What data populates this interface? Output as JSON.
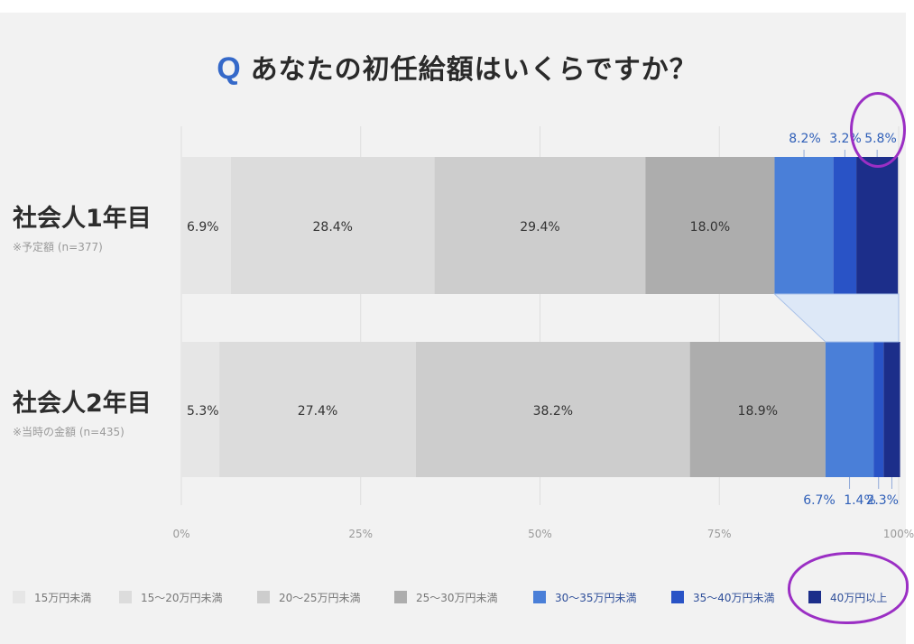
{
  "title": {
    "q": "Q",
    "text": "あなたの初任給額はいくらですか？"
  },
  "chart_data": {
    "type": "stacked-bar-horizontal",
    "title": "あなたの初任給額はいくらですか？",
    "categories": [
      {
        "label": "社会人1年目",
        "note": "※予定額 (n=377)"
      },
      {
        "label": "社会人2年目",
        "note": "※当時の金額 (n=435)"
      }
    ],
    "series": [
      {
        "name": "15万円未満",
        "color": "#e6e6e6",
        "values": [
          6.9,
          5.3
        ]
      },
      {
        "name": "15〜20万円未満",
        "color": "#dcdcdc",
        "values": [
          28.4,
          27.4
        ]
      },
      {
        "name": "20〜25万円未満",
        "color": "#cdcdcd",
        "values": [
          29.4,
          38.2
        ]
      },
      {
        "name": "25〜30万円未満",
        "color": "#adadad",
        "values": [
          18.0,
          18.9
        ]
      },
      {
        "name": "30〜35万円未満",
        "color": "#4a7fd8",
        "values": [
          8.2,
          6.7
        ]
      },
      {
        "name": "35〜40万円未満",
        "color": "#2953c6",
        "values": [
          3.2,
          1.4
        ]
      },
      {
        "name": "40万円以上",
        "color": "#1c2e8a",
        "values": [
          5.8,
          2.3
        ]
      }
    ],
    "value_labels": [
      [
        "6.9%",
        "28.4%",
        "29.4%",
        "18.0%",
        "8.2%",
        "3.2%",
        "5.8%"
      ],
      [
        "5.3%",
        "27.4%",
        "38.2%",
        "18.9%",
        "6.7%",
        "1.4%",
        "2.3%"
      ]
    ],
    "xlim": [
      0,
      100
    ],
    "ticks": [
      {
        "value": 0,
        "label": "0%"
      },
      {
        "value": 25,
        "label": "25%"
      },
      {
        "value": 50,
        "label": "50%"
      },
      {
        "value": 75,
        "label": "75%"
      },
      {
        "value": 100,
        "label": "100%"
      }
    ],
    "grid": true,
    "legend_position": "bottom"
  }
}
